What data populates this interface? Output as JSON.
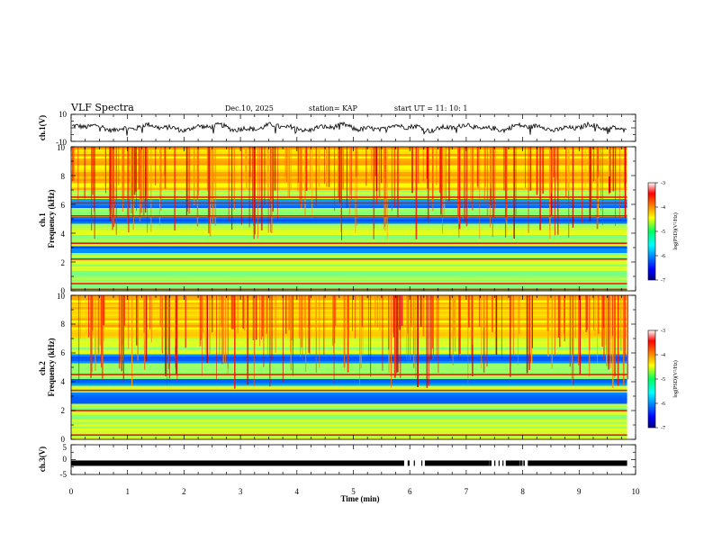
{
  "header": {
    "title": "VLF Spectra",
    "date": "Dec.10, 2025",
    "station": "station= KAP",
    "start": "start  UT =   11: 10: 1"
  },
  "chart_data": [
    {
      "type": "line",
      "name": "ch1-waveform",
      "ylabel": "ch.1(V)",
      "ylim": [
        -10,
        10
      ],
      "ytick_labels": [
        "10",
        "-10"
      ],
      "x_range_min": [
        0,
        9.85
      ],
      "trace_mean_v": 0.2,
      "trace_amplitude_v": 4
    },
    {
      "type": "heatmap",
      "name": "ch1-spectrogram",
      "ylabel": "ch.1\nFrequency (kHz)",
      "ylim": [
        0,
        10
      ],
      "ytick_labels": [
        "0",
        "2",
        "4",
        "6",
        "8",
        "10"
      ],
      "x_range_min": [
        0,
        9.85
      ],
      "colorbar": {
        "label": "log(PSD)(V²/Hz)",
        "range": [
          -7,
          -3
        ],
        "tick_labels": [
          "-3",
          "-4",
          "-5",
          "-6",
          "-7"
        ]
      },
      "red_bands_khz": [
        6.5,
        6.1,
        5.2,
        3.3,
        2.2,
        0.5,
        0.1
      ],
      "blue_bands_khz": [
        [
          4.6,
          5.0
        ],
        [
          5.7,
          6.3
        ],
        [
          2.6,
          3.1
        ]
      ]
    },
    {
      "type": "heatmap",
      "name": "ch2-spectrogram",
      "ylabel": "ch.2\nFrequency (kHz)",
      "ylim": [
        0,
        10
      ],
      "ytick_labels": [
        "0",
        "2",
        "4",
        "6",
        "8",
        "10"
      ],
      "x_range_min": [
        0,
        9.85
      ],
      "colorbar": {
        "label": "log(PSD)(V²/Hz)",
        "range": [
          -7,
          -3
        ],
        "tick_labels": [
          "-3",
          "-4",
          "-5",
          "-6",
          "-7"
        ]
      },
      "red_bands_khz": [
        4.5,
        3.4,
        2.0,
        0.3
      ],
      "blue_bands_khz": [
        [
          3.6,
          4.2
        ],
        [
          2.5,
          3.2
        ],
        [
          5.2,
          5.9
        ]
      ]
    },
    {
      "type": "line",
      "name": "ch3-level",
      "ylabel": "ch.3(V)",
      "ylim": [
        -5,
        5
      ],
      "ytick_labels": [
        "5",
        "0",
        "-5"
      ],
      "level_v": -1.2,
      "x_range_min": [
        0,
        9.85
      ],
      "gaps_min": [
        [
          5.9,
          6.3
        ],
        [
          7.4,
          7.7
        ],
        [
          7.95,
          8.1
        ]
      ]
    }
  ],
  "time_axis": {
    "label": "Time (min)",
    "xlim": [
      0,
      10
    ],
    "tick_labels": [
      "0",
      "1",
      "2",
      "3",
      "4",
      "5",
      "6",
      "7",
      "8",
      "9",
      "10"
    ]
  }
}
